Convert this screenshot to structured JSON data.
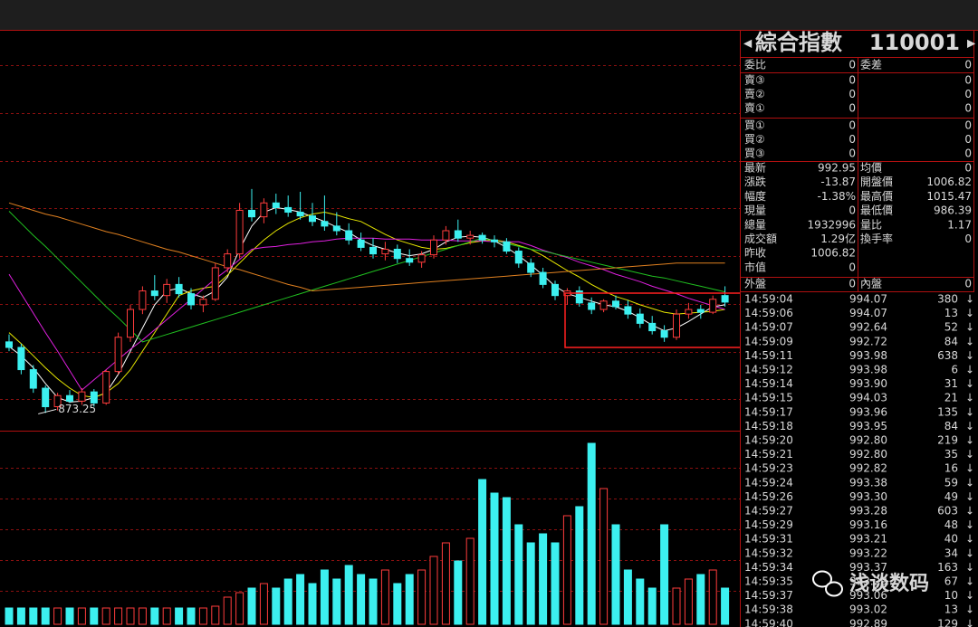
{
  "chart_data": {
    "type": "candlestick",
    "open": [
      950,
      944,
      920,
      900,
      880,
      892,
      886,
      896,
      884,
      918,
      955,
      985,
      1005,
      1000,
      1012,
      1002,
      990,
      996,
      1030,
      1045,
      1092,
      1085,
      1100,
      1095,
      1090,
      1086,
      1080,
      1075,
      1070,
      1060,
      1052,
      1045,
      1050,
      1040,
      1036,
      1044,
      1060,
      1070,
      1062,
      1065,
      1060,
      1058,
      1048,
      1035,
      1025,
      1012,
      1000,
      1005,
      992,
      985,
      994,
      988,
      980,
      970,
      962,
      955,
      980,
      985,
      982,
      1000
    ],
    "high": [
      958,
      948,
      925,
      903,
      895,
      898,
      900,
      899,
      920,
      960,
      990,
      1010,
      1022,
      1018,
      1020,
      1008,
      1000,
      1035,
      1050,
      1100,
      1115,
      1105,
      1110,
      1108,
      1112,
      1100,
      1108,
      1090,
      1078,
      1068,
      1062,
      1058,
      1055,
      1050,
      1048,
      1065,
      1075,
      1082,
      1070,
      1068,
      1065,
      1062,
      1052,
      1040,
      1030,
      1016,
      1008,
      1010,
      998,
      996,
      1000,
      995,
      986,
      978,
      968,
      985,
      992,
      990,
      1000,
      1010
    ],
    "low": [
      940,
      915,
      895,
      873.25,
      876,
      884,
      882,
      880,
      882,
      915,
      950,
      980,
      995,
      992,
      998,
      985,
      982,
      994,
      1025,
      1040,
      1080,
      1078,
      1088,
      1085,
      1082,
      1075,
      1070,
      1065,
      1055,
      1048,
      1040,
      1038,
      1035,
      1032,
      1030,
      1040,
      1055,
      1058,
      1055,
      1056,
      1052,
      1045,
      1030,
      1020,
      1008,
      995,
      990,
      988,
      980,
      982,
      985,
      975,
      965,
      958,
      950,
      952,
      975,
      975,
      980,
      988
    ],
    "close": [
      944,
      920,
      900,
      880,
      892,
      886,
      896,
      884,
      918,
      955,
      985,
      1005,
      1000,
      1012,
      1002,
      990,
      996,
      1030,
      1045,
      1092,
      1085,
      1100,
      1095,
      1090,
      1086,
      1080,
      1075,
      1070,
      1060,
      1052,
      1045,
      1050,
      1040,
      1036,
      1044,
      1060,
      1070,
      1062,
      1065,
      1060,
      1058,
      1048,
      1035,
      1025,
      1012,
      1000,
      1005,
      992,
      985,
      994,
      988,
      980,
      970,
      962,
      955,
      980,
      985,
      982,
      996,
      992.95
    ],
    "ylim": [
      860,
      1280
    ],
    "low_annotation": 873.25,
    "up_color": "#ff3c3c",
    "down_color": "#3cf0f0",
    "moving_averages": [
      {
        "color": "#ffffff",
        "values": [
          945,
          935,
          922,
          905,
          890,
          885,
          886,
          890,
          895,
          915,
          940,
          965,
          990,
          1005,
          1008,
          1002,
          998,
          1005,
          1020,
          1050,
          1075,
          1090,
          1095,
          1093,
          1090,
          1085,
          1080,
          1074,
          1068,
          1060,
          1054,
          1050,
          1046,
          1043,
          1045,
          1050,
          1058,
          1063,
          1064,
          1063,
          1059,
          1052,
          1043,
          1033,
          1022,
          1010,
          1002,
          998,
          994,
          990,
          988,
          983,
          976,
          968,
          962,
          965,
          972,
          980,
          988,
          990
        ]
      },
      {
        "color": "#e8e800",
        "values": [
          960,
          948,
          935,
          922,
          910,
          900,
          892,
          890,
          895,
          905,
          920,
          940,
          960,
          980,
          1000,
          1005,
          1008,
          1010,
          1022,
          1035,
          1048,
          1060,
          1070,
          1078,
          1084,
          1088,
          1090,
          1087,
          1083,
          1080,
          1073,
          1066,
          1060,
          1056,
          1052,
          1050,
          1051,
          1054,
          1057,
          1059,
          1060,
          1058,
          1054,
          1050,
          1043,
          1035,
          1027,
          1020,
          1012,
          1005,
          999,
          995,
          990,
          986,
          982,
          980,
          981,
          982,
          983,
          985
        ]
      },
      {
        "color": "#e020e0",
        "values": [
          1023,
          1002,
          981,
          960,
          940,
          919,
          898,
          909,
          920,
          931,
          942,
          952,
          963,
          974,
          985,
          996,
          1007,
          1018,
          1028,
          1039,
          1050,
          1052,
          1053,
          1055,
          1056,
          1058,
          1059,
          1061,
          1062,
          1062,
          1062,
          1061,
          1061,
          1061,
          1060,
          1060,
          1060,
          1059,
          1059,
          1059,
          1058,
          1058,
          1058,
          1054,
          1049,
          1045,
          1041,
          1036,
          1032,
          1028,
          1023,
          1019,
          1015,
          1010,
          1006,
          1002,
          997,
          993,
          989,
          985
        ]
      },
      {
        "color": "#20c020",
        "values": [
          1091,
          1078,
          1065,
          1053,
          1040,
          1027,
          1014,
          1001,
          988,
          976,
          963,
          950,
          954,
          958,
          962,
          966,
          970,
          974,
          978,
          982,
          986,
          990,
          994,
          998,
          1002,
          1006,
          1010,
          1014,
          1018,
          1022,
          1026,
          1030,
          1034,
          1038,
          1042,
          1046,
          1050,
          1054,
          1058,
          1062,
          1059,
          1056,
          1053,
          1050,
          1048,
          1045,
          1042,
          1039,
          1036,
          1033,
          1030,
          1027,
          1024,
          1021,
          1019,
          1016,
          1013,
          1010,
          1007,
          1004
        ]
      },
      {
        "color": "#e08020",
        "values": [
          1100,
          1096,
          1092,
          1088,
          1085,
          1081,
          1077,
          1073,
          1069,
          1066,
          1062,
          1058,
          1054,
          1050,
          1047,
          1043,
          1039,
          1035,
          1031,
          1028,
          1024,
          1020,
          1016,
          1012,
          1009,
          1005,
          1006,
          1007,
          1008,
          1009,
          1010,
          1011,
          1012,
          1013,
          1014,
          1015,
          1016,
          1017,
          1018,
          1019,
          1020,
          1021,
          1022,
          1023,
          1024,
          1025,
          1026,
          1027,
          1028,
          1029,
          1030,
          1031,
          1032,
          1033,
          1034,
          1035,
          1035,
          1035,
          1035,
          1035
        ]
      }
    ],
    "volume": {
      "ylim": [
        0,
        210
      ],
      "values": [
        18,
        18,
        18,
        18,
        18,
        18,
        18,
        18,
        18,
        18,
        18,
        18,
        18,
        18,
        18,
        18,
        18,
        20,
        30,
        35,
        40,
        45,
        40,
        50,
        55,
        45,
        60,
        50,
        65,
        55,
        50,
        60,
        45,
        55,
        60,
        75,
        90,
        70,
        95,
        160,
        145,
        140,
        110,
        90,
        100,
        90,
        120,
        130,
        200,
        150,
        110,
        60,
        50,
        40,
        110,
        40,
        50,
        55,
        60,
        40
      ]
    }
  },
  "quote_panel": {
    "title": "綜合指數",
    "code": "110001",
    "order_ratio": [
      "委比",
      "0",
      "委差",
      "0"
    ],
    "asks": [
      [
        "賣③",
        "0",
        "0"
      ],
      [
        "賣②",
        "0",
        "0"
      ],
      [
        "賣①",
        "0",
        "0"
      ]
    ],
    "bids": [
      [
        "買①",
        "0",
        "0"
      ],
      [
        "買②",
        "0",
        "0"
      ],
      [
        "買③",
        "0",
        "0"
      ]
    ],
    "quote": [
      [
        "最新",
        "992.95",
        "均價",
        "0"
      ],
      [
        "漲跌",
        "-13.87",
        "開盤價",
        "1006.82"
      ],
      [
        "幅度",
        "-1.38%",
        "最高價",
        "1015.47"
      ],
      [
        "現量",
        "0",
        "最低價",
        "986.39"
      ],
      [
        "總量",
        "1932996",
        "量比",
        "1.17"
      ],
      [
        "成交額",
        "1.29亿",
        "換手率",
        "0"
      ],
      [
        "昨收",
        "1006.82"
      ],
      [
        "市值",
        "0"
      ]
    ],
    "outer_inner": [
      "外盤",
      "0",
      "內盤",
      "0"
    ],
    "trades": [
      [
        "14:59:04",
        "994.07",
        "380",
        "↓"
      ],
      [
        "14:59:06",
        "994.07",
        "13",
        "↓"
      ],
      [
        "14:59:07",
        "992.64",
        "52",
        "↓"
      ],
      [
        "14:59:09",
        "992.72",
        "84",
        "↓"
      ],
      [
        "14:59:11",
        "993.98",
        "638",
        "↓"
      ],
      [
        "14:59:12",
        "993.98",
        "6",
        "↓"
      ],
      [
        "14:59:14",
        "993.90",
        "31",
        "↓"
      ],
      [
        "14:59:15",
        "994.03",
        "21",
        "↓"
      ],
      [
        "14:59:17",
        "993.96",
        "135",
        "↓"
      ],
      [
        "14:59:18",
        "993.95",
        "84",
        "↓"
      ],
      [
        "14:59:20",
        "992.80",
        "219",
        "↓"
      ],
      [
        "14:59:21",
        "992.80",
        "35",
        "↓"
      ],
      [
        "14:59:23",
        "992.82",
        "16",
        "↓"
      ],
      [
        "14:59:24",
        "993.38",
        "59",
        "↓"
      ],
      [
        "14:59:26",
        "993.30",
        "49",
        "↓"
      ],
      [
        "14:59:27",
        "993.28",
        "603",
        "↓"
      ],
      [
        "14:59:29",
        "993.16",
        "48",
        "↓"
      ],
      [
        "14:59:31",
        "993.21",
        "40",
        "↓"
      ],
      [
        "14:59:32",
        "993.22",
        "34",
        "↓"
      ],
      [
        "14:59:34",
        "993.37",
        "163",
        "↓"
      ],
      [
        "14:59:35",
        "993.29",
        "67",
        "↓"
      ],
      [
        "14:59:37",
        "993.06",
        "10",
        "↓"
      ],
      [
        "14:59:38",
        "993.02",
        "13",
        "↓"
      ],
      [
        "14:59:40",
        "992.89",
        "129",
        "↓"
      ]
    ]
  },
  "watermark": "浅谈数码"
}
